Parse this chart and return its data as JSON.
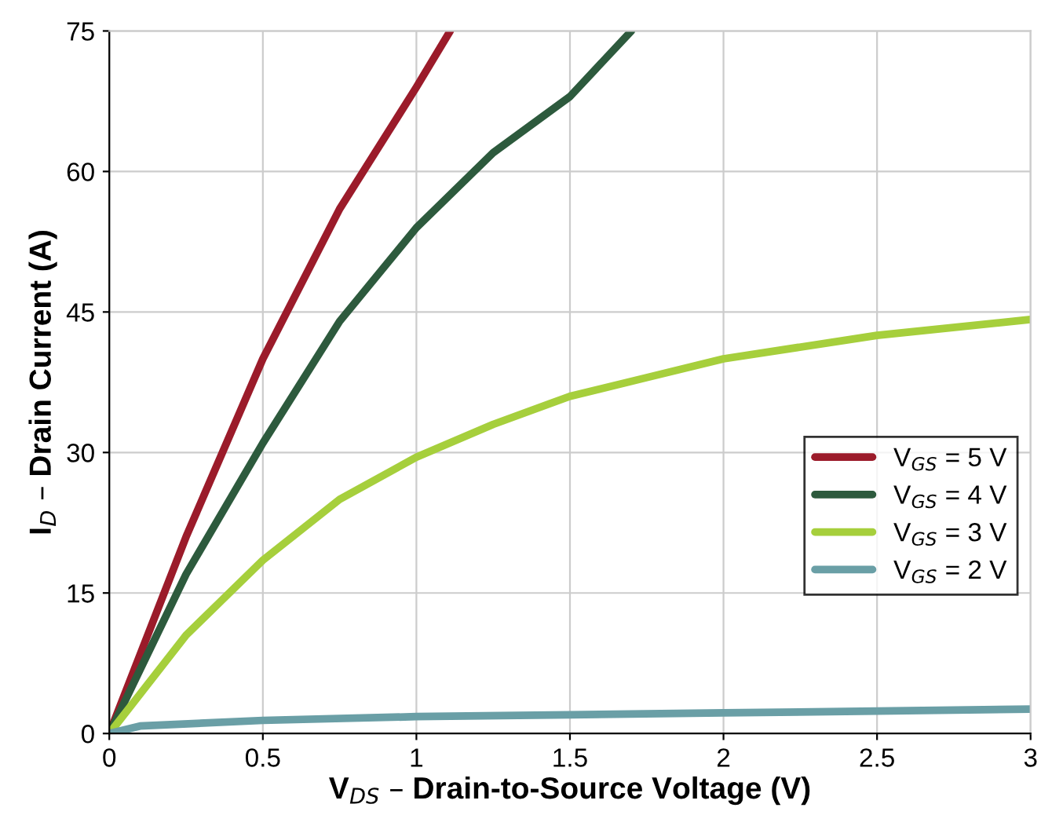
{
  "chart_data": {
    "type": "line",
    "xlabel": "V$_{DS}$ – Drain-to-Source Voltage (V)",
    "ylabel": "I$_{D}$ – Drain Current (A)",
    "xlim": [
      0,
      3
    ],
    "ylim": [
      0,
      75
    ],
    "xticks": [
      0,
      0.5,
      1,
      1.5,
      2,
      2.5,
      3
    ],
    "yticks": [
      0,
      15,
      30,
      45,
      60,
      75
    ],
    "grid": true,
    "legend": "right",
    "marker": "none",
    "line_style": "solid",
    "series": [
      {
        "name": "V$_{GS}$ = 5 V",
        "color": "#9b1b2a",
        "x": [
          0,
          0.25,
          0.5,
          0.75,
          1.0,
          1.11
        ],
        "values": [
          0,
          21,
          40,
          56,
          69,
          75
        ]
      },
      {
        "name": "V$_{GS}$ = 4 V",
        "color": "#2d5a3d",
        "x": [
          0,
          0.25,
          0.5,
          0.75,
          1.0,
          1.25,
          1.5,
          1.7
        ],
        "values": [
          0,
          17,
          31,
          44,
          54,
          62,
          68,
          75
        ]
      },
      {
        "name": "V$_{GS}$ = 3 V",
        "color": "#a6cf3c",
        "x": [
          0,
          0.25,
          0.5,
          0.75,
          1.0,
          1.25,
          1.5,
          1.75,
          2.0,
          2.5,
          3.0
        ],
        "values": [
          0,
          10.5,
          18.5,
          25,
          29.5,
          33,
          36,
          38,
          40,
          42.5,
          44.2
        ]
      },
      {
        "name": "V$_{GS}$ = 2 V",
        "color": "#6a9fa6",
        "x": [
          0,
          0.1,
          0.5,
          1.0,
          1.5,
          2.0,
          2.5,
          3.0
        ],
        "values": [
          0,
          0.8,
          1.4,
          1.8,
          2.0,
          2.2,
          2.4,
          2.6
        ]
      }
    ]
  }
}
